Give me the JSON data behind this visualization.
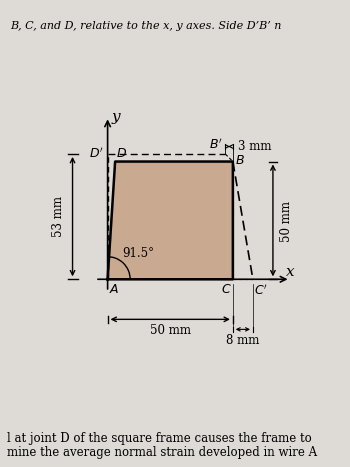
{
  "bg_color": "#e8e4df",
  "frame_fill_color": "#b8845a",
  "frame_fill_alpha": 0.55,
  "A": [
    0,
    0
  ],
  "B": [
    50,
    50
  ],
  "C": [
    50,
    0
  ],
  "D": [
    3,
    47
  ],
  "Dp": [
    0,
    50
  ],
  "Bp": [
    47,
    50
  ],
  "Cp": [
    58,
    0
  ],
  "angle_label": "91.5°",
  "dim_53": "53 mm",
  "dim_50_horiz": "50 mm",
  "dim_50_vert": "50 mm",
  "dim_3": "3 mm",
  "dim_8": "8 mm",
  "text_top": "B, C, and D, relative to the x, y axes. Side D’B’ n",
  "text_bottom1": "l at joint D of the square frame causes the frame to",
  "text_bottom2": "mine the average normal strain developed in wire A",
  "xlim": [
    -22,
    80
  ],
  "ylim": [
    -28,
    72
  ]
}
